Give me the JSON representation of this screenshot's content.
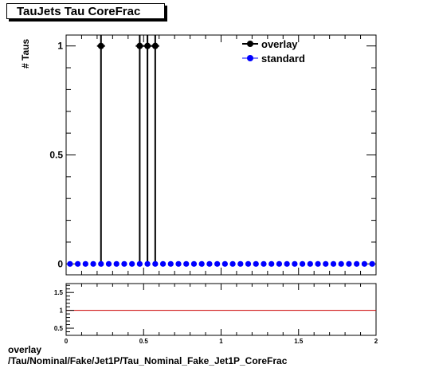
{
  "title": "TauJets Tau CoreFrac",
  "caption": {
    "line1": "overlay",
    "line2": "/Tau/Nominal/Fake/Jet1P/Tau_Nominal_Fake_Jet1P_CoreFrac"
  },
  "chart_data": [
    {
      "type": "scatter",
      "ylabel": "# Taus",
      "xlim": [
        0,
        2
      ],
      "ylim": [
        -0.05,
        1.05
      ],
      "yticks": [
        0,
        0.5,
        1
      ],
      "ytick_labels": [
        "0",
        "0.5",
        "1"
      ],
      "legend": {
        "position": "top-right"
      },
      "series": [
        {
          "name": "overlay",
          "color": "#000000",
          "x": [
            0.225,
            0.475,
            0.525,
            0.575
          ],
          "y": [
            1,
            1,
            1,
            1
          ]
        },
        {
          "name": "standard",
          "color": "#0000ff",
          "x": [
            0.025,
            0.075,
            0.125,
            0.175,
            0.225,
            0.275,
            0.325,
            0.375,
            0.425,
            0.475,
            0.525,
            0.575,
            0.625,
            0.675,
            0.725,
            0.775,
            0.825,
            0.875,
            0.925,
            0.975,
            1.025,
            1.075,
            1.125,
            1.175,
            1.225,
            1.275,
            1.325,
            1.375,
            1.425,
            1.475,
            1.525,
            1.575,
            1.625,
            1.675,
            1.725,
            1.775,
            1.825,
            1.875,
            1.925,
            1.975
          ],
          "y": [
            0,
            0,
            0,
            0,
            0,
            0,
            0,
            0,
            0,
            0,
            0,
            0,
            0,
            0,
            0,
            0,
            0,
            0,
            0,
            0,
            0,
            0,
            0,
            0,
            0,
            0,
            0,
            0,
            0,
            0,
            0,
            0,
            0,
            0,
            0,
            0,
            0,
            0,
            0,
            0
          ]
        }
      ]
    },
    {
      "type": "line",
      "xlim": [
        0,
        2
      ],
      "ylim": [
        0.3,
        1.75
      ],
      "xticks": [
        0,
        0.5,
        1,
        1.5,
        2
      ],
      "xtick_labels": [
        "0",
        "0.5",
        "1",
        "1.5",
        "2"
      ],
      "yticks": [
        0.5,
        1,
        1.5
      ],
      "ytick_labels": [
        "0.5",
        "1",
        "1.5"
      ],
      "reference_line": {
        "y": 1,
        "color": "#cc0000"
      }
    }
  ]
}
